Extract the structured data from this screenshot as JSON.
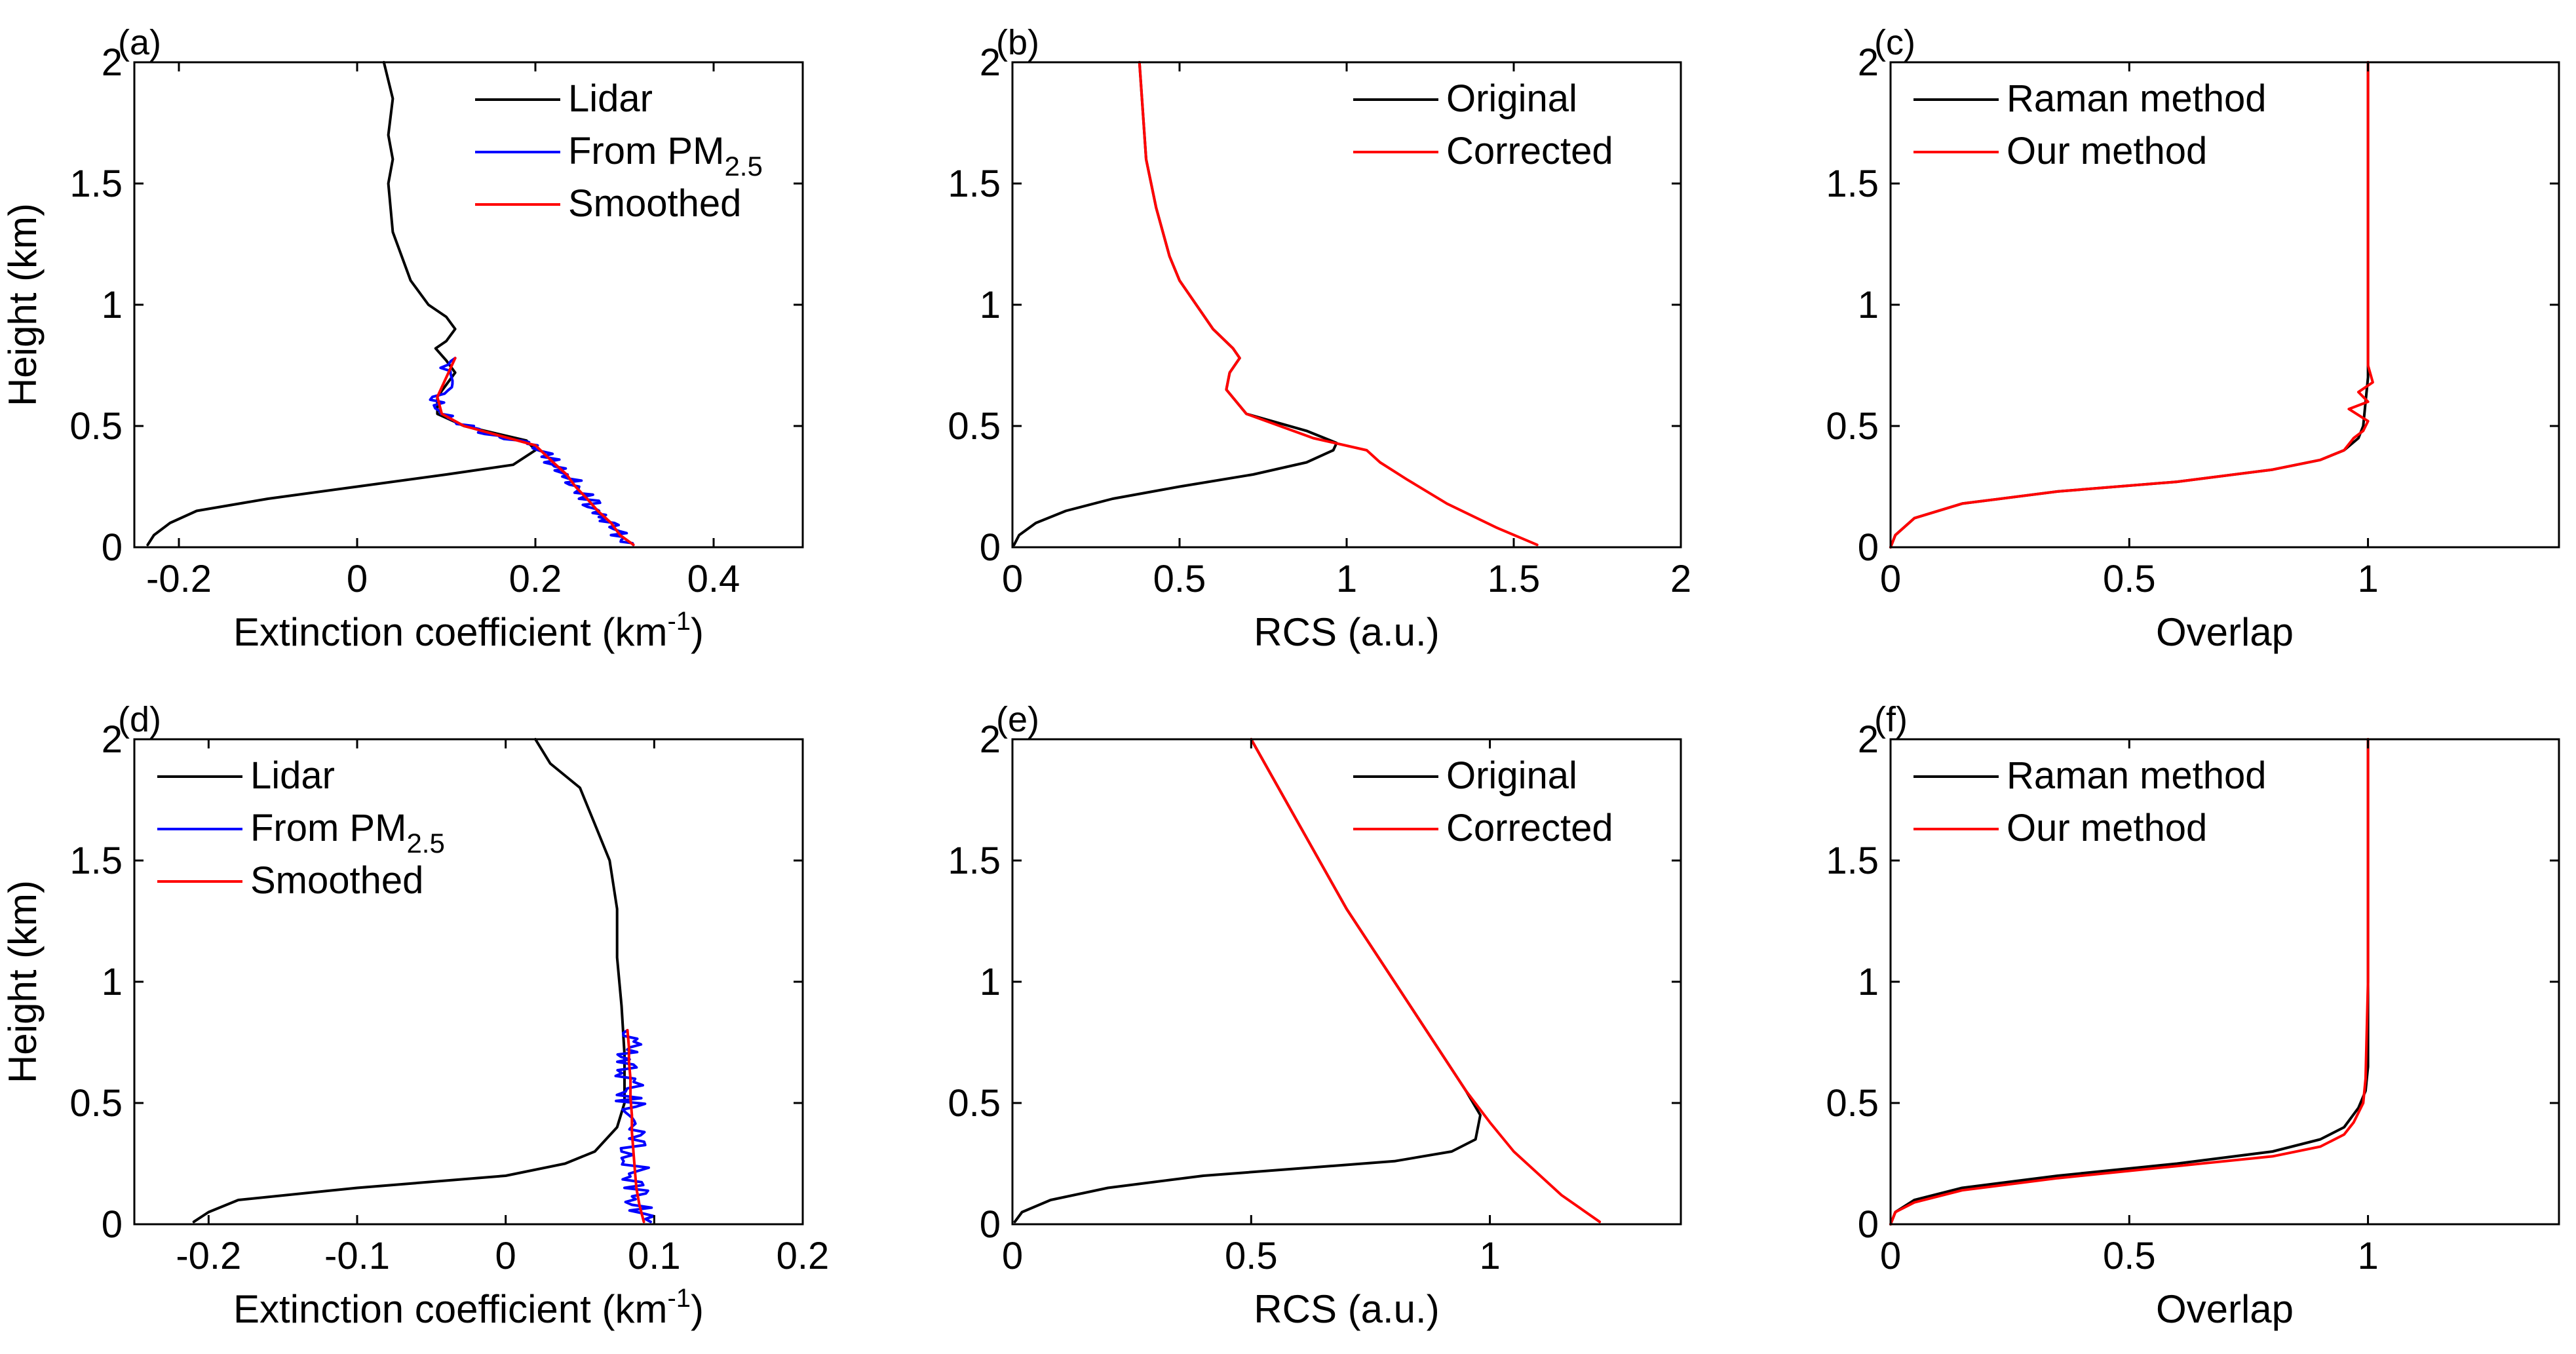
{
  "colors": {
    "black": "#000000",
    "blue": "#0000ff",
    "red": "#ff0000"
  },
  "chart_data": [
    {
      "type": "line",
      "panel_label": "(a)",
      "xlabel": "Extinction coefficient (km",
      "xlabel_sup": "-1",
      "xlabel_end": ")",
      "ylabel": "Height (km)",
      "xlim": [
        -0.25,
        0.5
      ],
      "ylim": [
        0,
        2
      ],
      "xticks": [
        -0.2,
        0,
        0.2,
        0.4
      ],
      "xtick_labels": [
        "-0.2",
        "0",
        "0.2",
        "0.4"
      ],
      "yticks": [
        0,
        0.5,
        1,
        1.5,
        2
      ],
      "ytick_labels": [
        "0",
        "0.5",
        "1",
        "1.5",
        "2"
      ],
      "legend_position": "top-right",
      "series": [
        {
          "name": "Lidar",
          "name_sub": "",
          "color": "#000000",
          "x": [
            -0.235,
            -0.228,
            -0.21,
            -0.18,
            -0.1,
            0.0,
            0.1,
            0.175,
            0.2,
            0.19,
            0.12,
            0.09,
            0.09,
            0.1,
            0.11,
            0.1,
            0.088,
            0.1,
            0.11,
            0.1,
            0.08,
            0.06,
            0.05,
            0.04,
            0.035,
            0.04,
            0.035,
            0.04,
            0.03
          ],
          "y": [
            0.01,
            0.05,
            0.1,
            0.15,
            0.2,
            0.25,
            0.3,
            0.34,
            0.4,
            0.44,
            0.5,
            0.55,
            0.62,
            0.67,
            0.72,
            0.77,
            0.82,
            0.85,
            0.9,
            0.95,
            1.0,
            1.1,
            1.2,
            1.3,
            1.5,
            1.6,
            1.7,
            1.85,
            2.0
          ]
        },
        {
          "name": "From PM",
          "name_sub": "2.5",
          "color": "#0000ff",
          "noise": 0.012,
          "seed": 7,
          "x": [
            0.31,
            0.295,
            0.285,
            0.27,
            0.258,
            0.245,
            0.235,
            0.22,
            0.2,
            0.16,
            0.12,
            0.095,
            0.09,
            0.1,
            0.11
          ],
          "y": [
            0.01,
            0.05,
            0.1,
            0.15,
            0.2,
            0.25,
            0.3,
            0.35,
            0.42,
            0.46,
            0.5,
            0.55,
            0.62,
            0.7,
            0.78
          ]
        },
        {
          "name": "Smoothed",
          "name_sub": "",
          "color": "#ff0000",
          "x": [
            0.31,
            0.295,
            0.285,
            0.27,
            0.258,
            0.245,
            0.235,
            0.22,
            0.2,
            0.16,
            0.12,
            0.095,
            0.09,
            0.1,
            0.11
          ],
          "y": [
            0.01,
            0.05,
            0.1,
            0.15,
            0.2,
            0.25,
            0.3,
            0.35,
            0.42,
            0.46,
            0.5,
            0.55,
            0.62,
            0.7,
            0.78
          ]
        }
      ]
    },
    {
      "type": "line",
      "panel_label": "(b)",
      "xlabel": "RCS (a.u.)",
      "xlabel_sup": "",
      "xlabel_end": "",
      "ylabel": "",
      "xlim": [
        0,
        2
      ],
      "ylim": [
        0,
        2
      ],
      "xticks": [
        0,
        0.5,
        1,
        1.5,
        2
      ],
      "xtick_labels": [
        "0",
        "0.5",
        "1",
        "1.5",
        "2"
      ],
      "yticks": [
        0,
        0.5,
        1,
        1.5,
        2
      ],
      "ytick_labels": [
        "0",
        "0.5",
        "1",
        "1.5",
        "2"
      ],
      "legend_position": "top-right",
      "series": [
        {
          "name": "Original",
          "name_sub": "",
          "color": "#000000",
          "x": [
            0.005,
            0.02,
            0.07,
            0.16,
            0.3,
            0.5,
            0.72,
            0.88,
            0.96,
            0.97,
            0.88,
            0.7,
            0.64,
            0.65,
            0.68,
            0.66,
            0.6,
            0.55,
            0.5,
            0.47,
            0.43,
            0.4,
            0.38
          ],
          "y": [
            0.01,
            0.05,
            0.1,
            0.15,
            0.2,
            0.25,
            0.3,
            0.35,
            0.4,
            0.43,
            0.48,
            0.55,
            0.65,
            0.72,
            0.78,
            0.82,
            0.9,
            1.0,
            1.1,
            1.2,
            1.4,
            1.6,
            2.0
          ]
        },
        {
          "name": "Corrected",
          "name_sub": "",
          "color": "#ff0000",
          "x": [
            1.57,
            1.45,
            1.3,
            1.18,
            1.1,
            1.06,
            0.9,
            0.7,
            0.64,
            0.65,
            0.68,
            0.66,
            0.6,
            0.55,
            0.5,
            0.47,
            0.43,
            0.4,
            0.38
          ],
          "y": [
            0.01,
            0.08,
            0.18,
            0.28,
            0.35,
            0.4,
            0.45,
            0.55,
            0.65,
            0.72,
            0.78,
            0.82,
            0.9,
            1.0,
            1.1,
            1.2,
            1.4,
            1.6,
            2.0
          ]
        }
      ]
    },
    {
      "type": "line",
      "panel_label": "(c)",
      "xlabel": "Overlap",
      "xlabel_sup": "",
      "xlabel_end": "",
      "ylabel": "",
      "xlim": [
        0,
        1.4
      ],
      "ylim": [
        0,
        2
      ],
      "xticks": [
        0,
        0.5,
        1
      ],
      "xtick_labels": [
        "0",
        "0.5",
        "1"
      ],
      "yticks": [
        0,
        0.5,
        1,
        1.5,
        2
      ],
      "ytick_labels": [
        "0",
        "0.5",
        "1",
        "1.5",
        "2"
      ],
      "legend_position": "top-left",
      "series": [
        {
          "name": "Raman method",
          "name_sub": "",
          "color": "#000000",
          "x": [
            0.0,
            0.01,
            0.05,
            0.15,
            0.35,
            0.6,
            0.8,
            0.9,
            0.95,
            0.98,
            0.99,
            0.995,
            1.0,
            1.0,
            1.0
          ],
          "y": [
            0.0,
            0.05,
            0.12,
            0.18,
            0.23,
            0.27,
            0.32,
            0.36,
            0.4,
            0.45,
            0.5,
            0.6,
            0.7,
            1.0,
            2.0
          ]
        },
        {
          "name": "Our method",
          "name_sub": "",
          "color": "#ff0000",
          "x": [
            0.0,
            0.01,
            0.05,
            0.15,
            0.35,
            0.6,
            0.8,
            0.9,
            0.95,
            0.97,
            0.99,
            1.0,
            0.96,
            1.0,
            0.98,
            1.01,
            1.0,
            1.0,
            1.0
          ],
          "y": [
            0.0,
            0.05,
            0.12,
            0.18,
            0.23,
            0.27,
            0.32,
            0.36,
            0.4,
            0.45,
            0.48,
            0.52,
            0.57,
            0.6,
            0.64,
            0.68,
            0.75,
            1.0,
            2.0
          ]
        }
      ]
    },
    {
      "type": "line",
      "panel_label": "(d)",
      "xlabel": "Extinction coefficient (km",
      "xlabel_sup": "-1",
      "xlabel_end": ")",
      "ylabel": "Height (km)",
      "xlim": [
        -0.25,
        0.2
      ],
      "ylim": [
        0,
        2
      ],
      "xticks": [
        -0.2,
        -0.1,
        0,
        0.1,
        0.2
      ],
      "xtick_labels": [
        "-0.2",
        "-0.1",
        "0",
        "0.1",
        "0.2"
      ],
      "yticks": [
        0,
        0.5,
        1,
        1.5,
        2
      ],
      "ytick_labels": [
        "0",
        "0.5",
        "1",
        "1.5",
        "2"
      ],
      "legend_position": "top-left",
      "series": [
        {
          "name": "Lidar",
          "name_sub": "",
          "color": "#000000",
          "x": [
            -0.21,
            -0.2,
            -0.18,
            -0.1,
            0.0,
            0.04,
            0.06,
            0.075,
            0.08,
            0.08,
            0.078,
            0.075,
            0.075,
            0.07,
            0.06,
            0.05,
            0.03,
            0.02
          ],
          "y": [
            0.01,
            0.05,
            0.1,
            0.15,
            0.2,
            0.25,
            0.3,
            0.4,
            0.5,
            0.7,
            0.9,
            1.1,
            1.3,
            1.5,
            1.65,
            1.8,
            1.9,
            2.0
          ]
        },
        {
          "name": "From PM",
          "name_sub": "2.5",
          "color": "#0000ff",
          "noise": 0.01,
          "seed": 13,
          "x": [
            0.093,
            0.09,
            0.088,
            0.087,
            0.086,
            0.085,
            0.085,
            0.084,
            0.084,
            0.083,
            0.083,
            0.082
          ],
          "y": [
            0.01,
            0.08,
            0.15,
            0.22,
            0.3,
            0.38,
            0.45,
            0.52,
            0.6,
            0.67,
            0.73,
            0.8
          ]
        },
        {
          "name": "Smoothed",
          "name_sub": "",
          "color": "#ff0000",
          "x": [
            0.093,
            0.09,
            0.088,
            0.087,
            0.086,
            0.085,
            0.085,
            0.084,
            0.084,
            0.083,
            0.083,
            0.082
          ],
          "y": [
            0.01,
            0.08,
            0.15,
            0.22,
            0.3,
            0.38,
            0.45,
            0.52,
            0.6,
            0.67,
            0.73,
            0.8
          ]
        }
      ]
    },
    {
      "type": "line",
      "panel_label": "(e)",
      "xlabel": "RCS (a.u.)",
      "xlabel_sup": "",
      "xlabel_end": "",
      "ylabel": "",
      "xlim": [
        0,
        1.4
      ],
      "ylim": [
        0,
        2
      ],
      "xticks": [
        0,
        0.5,
        1
      ],
      "xtick_labels": [
        "0",
        "0.5",
        "1"
      ],
      "yticks": [
        0,
        0.5,
        1,
        1.5,
        2
      ],
      "ytick_labels": [
        "0",
        "0.5",
        "1",
        "1.5",
        "2"
      ],
      "legend_position": "top-right",
      "series": [
        {
          "name": "Original",
          "name_sub": "",
          "color": "#000000",
          "x": [
            0.005,
            0.02,
            0.08,
            0.2,
            0.4,
            0.6,
            0.8,
            0.92,
            0.97,
            0.98,
            0.95,
            0.9,
            0.8,
            0.7,
            0.6,
            0.5
          ],
          "y": [
            0.01,
            0.05,
            0.1,
            0.15,
            0.2,
            0.23,
            0.26,
            0.3,
            0.35,
            0.45,
            0.55,
            0.7,
            1.0,
            1.3,
            1.65,
            2.0
          ]
        },
        {
          "name": "Corrected",
          "name_sub": "",
          "color": "#ff0000",
          "x": [
            1.23,
            1.15,
            1.05,
            1.0,
            0.95,
            0.9,
            0.8,
            0.7,
            0.6,
            0.5
          ],
          "y": [
            0.01,
            0.12,
            0.3,
            0.42,
            0.55,
            0.7,
            1.0,
            1.3,
            1.65,
            2.0
          ]
        }
      ]
    },
    {
      "type": "line",
      "panel_label": "(f)",
      "xlabel": "Overlap",
      "xlabel_sup": "",
      "xlabel_end": "",
      "ylabel": "",
      "xlim": [
        0,
        1.4
      ],
      "ylim": [
        0,
        2
      ],
      "xticks": [
        0,
        0.5,
        1
      ],
      "xtick_labels": [
        "0",
        "0.5",
        "1"
      ],
      "yticks": [
        0,
        0.5,
        1,
        1.5,
        2
      ],
      "ytick_labels": [
        "0",
        "0.5",
        "1",
        "1.5",
        "2"
      ],
      "legend_position": "top-left",
      "series": [
        {
          "name": "Raman method",
          "name_sub": "",
          "color": "#000000",
          "x": [
            0.0,
            0.01,
            0.05,
            0.15,
            0.35,
            0.6,
            0.8,
            0.9,
            0.95,
            0.98,
            0.995,
            1.0,
            1.0,
            1.0
          ],
          "y": [
            0.0,
            0.05,
            0.1,
            0.15,
            0.2,
            0.25,
            0.3,
            0.35,
            0.4,
            0.48,
            0.55,
            0.65,
            1.0,
            2.0
          ]
        },
        {
          "name": "Our method",
          "name_sub": "",
          "color": "#ff0000",
          "x": [
            0.0,
            0.01,
            0.05,
            0.15,
            0.35,
            0.6,
            0.8,
            0.9,
            0.95,
            0.97,
            0.99,
            0.995,
            1.0,
            1.0
          ],
          "y": [
            0.0,
            0.05,
            0.09,
            0.14,
            0.19,
            0.24,
            0.28,
            0.32,
            0.37,
            0.42,
            0.5,
            0.6,
            1.0,
            2.0
          ]
        }
      ]
    }
  ]
}
